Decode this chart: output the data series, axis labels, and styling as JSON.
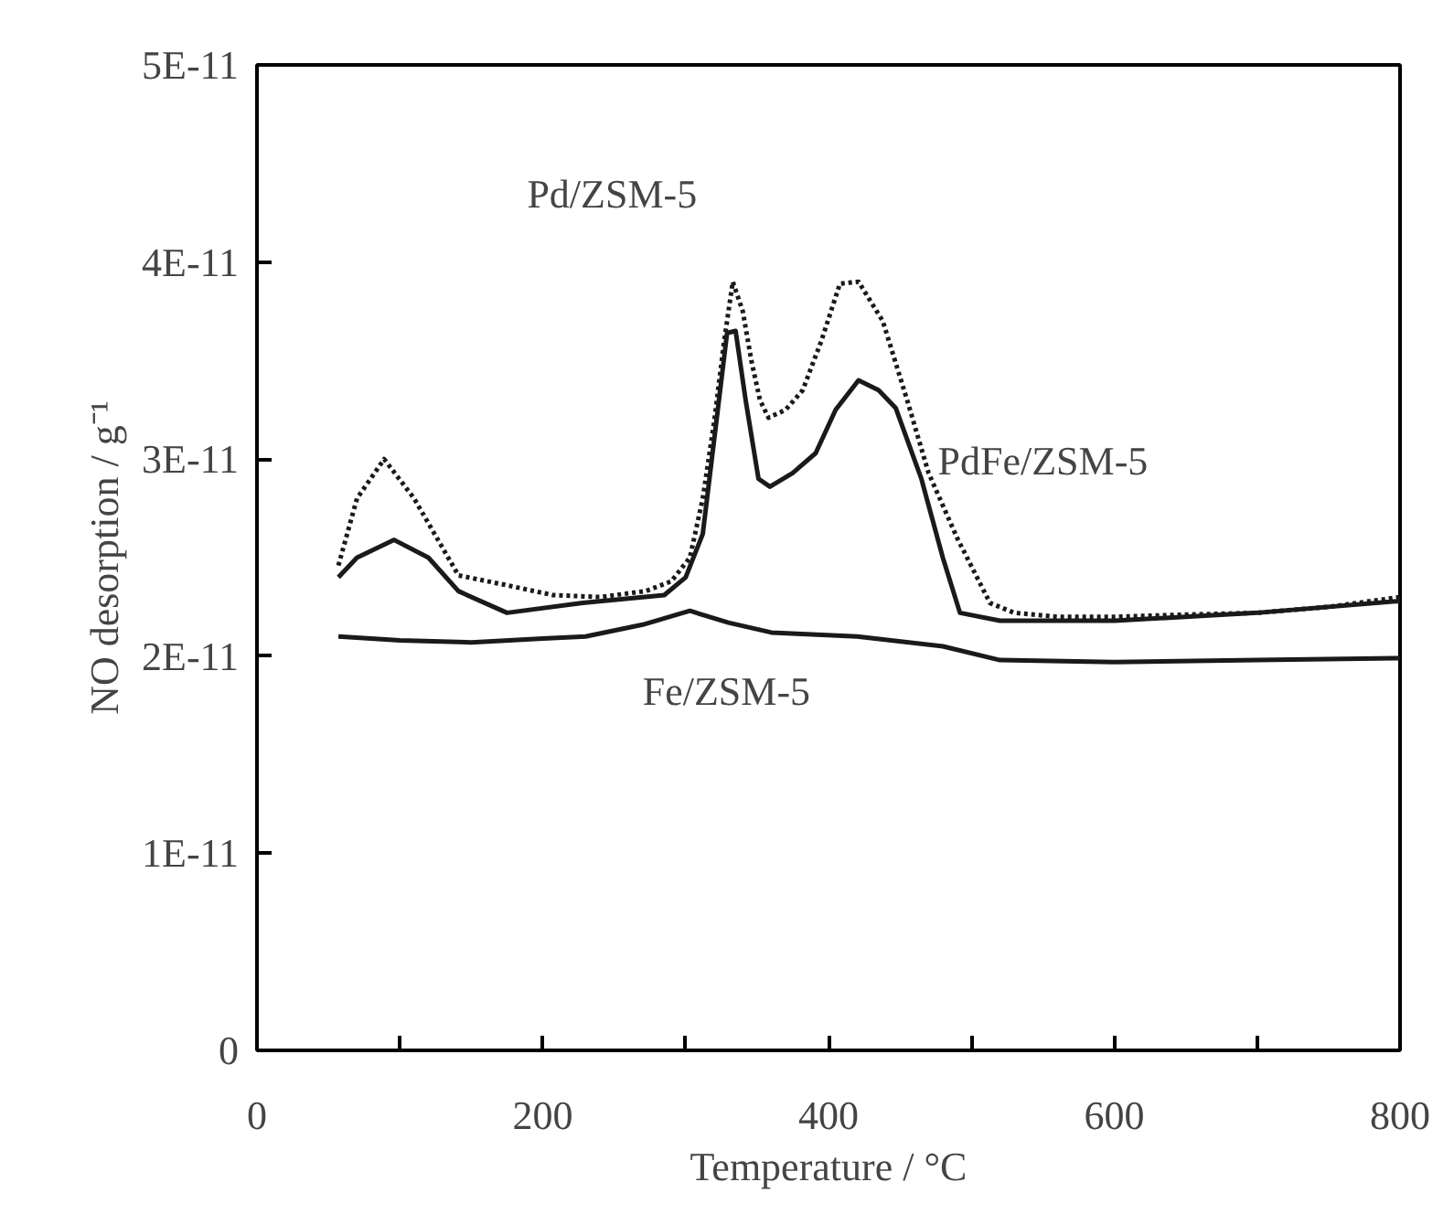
{
  "chart_data": {
    "type": "line",
    "xlabel": "Temperature / °C",
    "ylabel": "NO desorption / g⁻¹",
    "xlim": [
      0,
      800
    ],
    "ylim": [
      0,
      5e-11
    ],
    "xticks": [
      0,
      {
        "value": 100,
        "label": null
      },
      200,
      {
        "value": 300,
        "label": null
      },
      400,
      {
        "value": 500,
        "label": null
      },
      600,
      {
        "value": 700,
        "label": null
      },
      800
    ],
    "yticks": [
      0,
      {
        "value": 1e-11,
        "label": "1E-11"
      },
      {
        "value": 2e-11,
        "label": "2E-11"
      },
      {
        "value": 3e-11,
        "label": "3E-11"
      },
      {
        "value": 4e-11,
        "label": "4E-11"
      },
      {
        "value": 5e-11,
        "label": "5E-11"
      }
    ],
    "grid": false,
    "legend": false,
    "marker": "none",
    "series": [
      {
        "name": "Pd/ZSM-5",
        "color": "#1a1a1a",
        "line_style": "dotted",
        "x": [
          57,
          70,
          89,
          110,
          141,
          175,
          207,
          240,
          272,
          290,
          303,
          312,
          320,
          327,
          333,
          340,
          346,
          352,
          358,
          370,
          382,
          395,
          408,
          421,
          438,
          455,
          470,
          490,
          513,
          530,
          560,
          600,
          645,
          700,
          750,
          800
        ],
        "values": [
          2.46e-11,
          2.8e-11,
          3e-11,
          2.8e-11,
          2.41e-11,
          2.36e-11,
          2.31e-11,
          2.3e-11,
          2.33e-11,
          2.38e-11,
          2.5e-11,
          2.8e-11,
          3.19e-11,
          3.6e-11,
          3.9e-11,
          3.75e-11,
          3.5e-11,
          3.3e-11,
          3.21e-11,
          3.25e-11,
          3.35e-11,
          3.6e-11,
          3.89e-11,
          3.9e-11,
          3.7e-11,
          3.3e-11,
          2.93e-11,
          2.6e-11,
          2.27e-11,
          2.22e-11,
          2.2e-11,
          2.2e-11,
          2.21e-11,
          2.22e-11,
          2.25e-11,
          2.3e-11
        ]
      },
      {
        "name": "PdFe/ZSM-5",
        "color": "#1a1a1a",
        "line_style": "solid",
        "x": [
          57,
          70,
          96,
          120,
          141,
          175,
          228,
          285,
          300,
          312,
          320,
          329,
          335,
          342,
          351,
          359,
          375,
          391,
          405,
          421,
          435,
          447,
          465,
          480,
          492,
          520,
          600,
          700,
          800
        ],
        "values": [
          2.4e-11,
          2.5e-11,
          2.59e-11,
          2.5e-11,
          2.33e-11,
          2.22e-11,
          2.27e-11,
          2.31e-11,
          2.4e-11,
          2.62e-11,
          3.1e-11,
          3.64e-11,
          3.65e-11,
          3.3e-11,
          2.9e-11,
          2.86e-11,
          2.93e-11,
          3.03e-11,
          3.25e-11,
          3.4e-11,
          3.35e-11,
          3.26e-11,
          2.9e-11,
          2.5e-11,
          2.22e-11,
          2.18e-11,
          2.18e-11,
          2.22e-11,
          2.28e-11
        ]
      },
      {
        "name": "Fe/ZSM-5",
        "color": "#1a1a1a",
        "line_style": "solid",
        "x": [
          57,
          100,
          150,
          200,
          230,
          270,
          303,
          330,
          360,
          420,
          480,
          520,
          600,
          700,
          800
        ],
        "values": [
          2.1e-11,
          2.08e-11,
          2.07e-11,
          2.09e-11,
          2.1e-11,
          2.16e-11,
          2.23e-11,
          2.17e-11,
          2.12e-11,
          2.1e-11,
          2.05e-11,
          1.98e-11,
          1.97e-11,
          1.98e-11,
          1.99e-11
        ]
      }
    ]
  }
}
